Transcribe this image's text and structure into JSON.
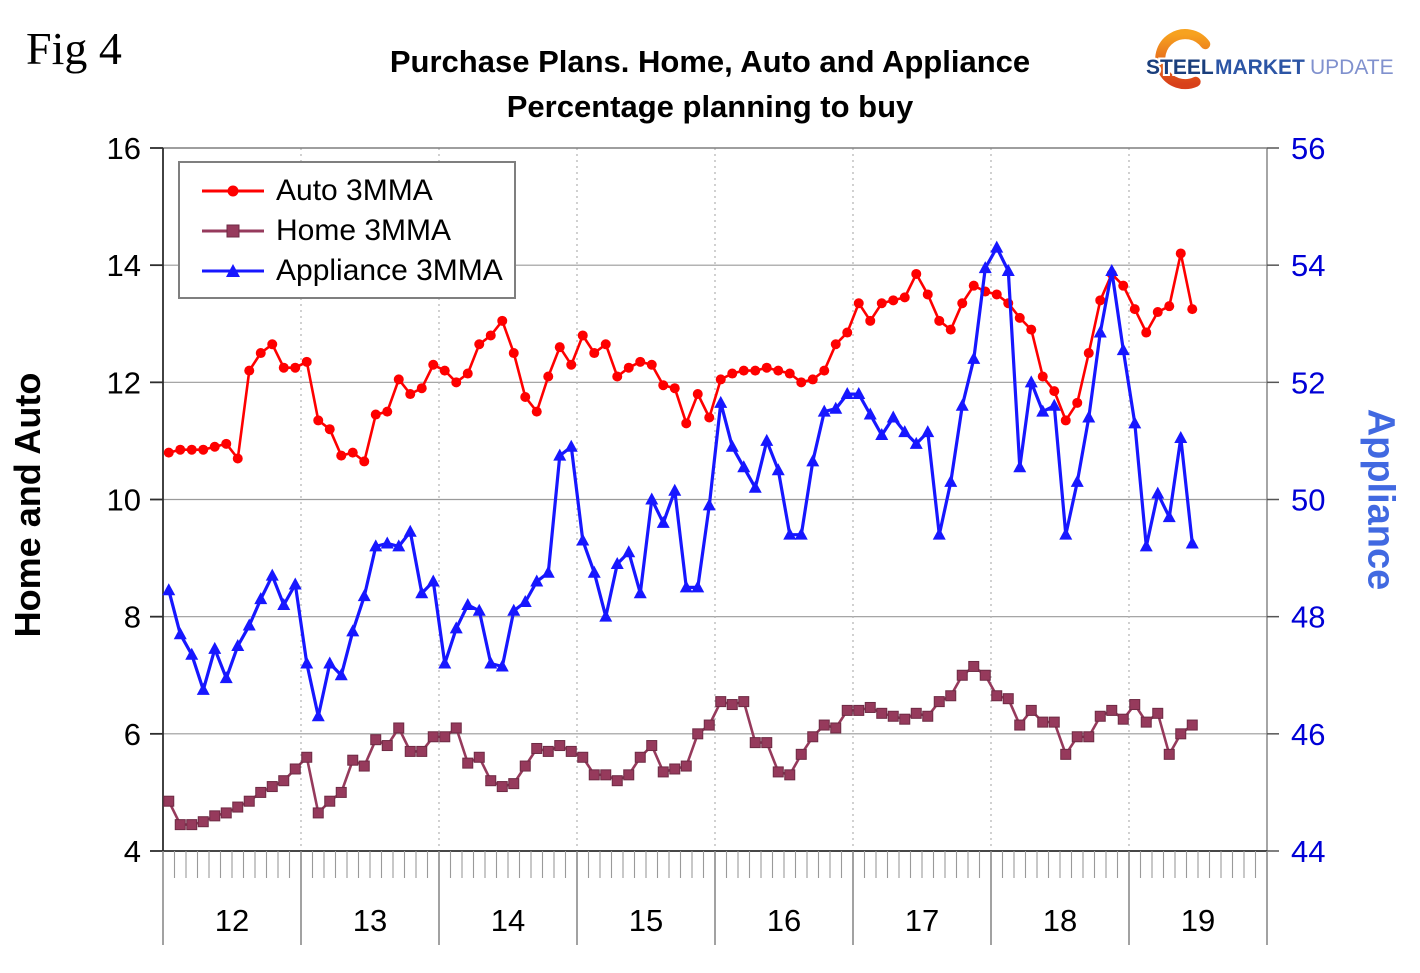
{
  "fig_label": "Fig 4",
  "title": {
    "line1": "Purchase Plans. Home, Auto and Appliance",
    "line2": "Percentage planning to buy"
  },
  "logo": {
    "steel": "STEEL",
    "market": "MARKET",
    "update": "UPDATE"
  },
  "left_axis": {
    "title": "Home and Auto",
    "min": 4,
    "max": 16,
    "ticks": [
      16,
      14,
      12,
      10,
      8,
      6,
      4
    ]
  },
  "right_axis": {
    "title": "Appliance",
    "min": 44,
    "max": 56,
    "ticks": [
      56,
      54,
      52,
      50,
      48,
      46,
      44
    ],
    "tick_color": "#0000d6",
    "title_color": "#4169e1"
  },
  "x_axis": {
    "year_labels": [
      "12",
      "13",
      "14",
      "15",
      "16",
      "17",
      "18",
      "19"
    ],
    "months_per_year": 12
  },
  "chart_data": {
    "type": "line",
    "x_range": "Jan 2012 - Jun 2019, monthly (90 points)",
    "title": "Purchase Plans. Home, Auto and Appliance — Percentage planning to buy",
    "grid": "horizontal solid every 2 units; vertical dotted at year boundaries",
    "legend_position": "top-left",
    "ylim_left": [
      4,
      16
    ],
    "ylim_right": [
      44,
      56
    ],
    "series": [
      {
        "name": "Auto 3MMA",
        "axis": "left",
        "color": "#fe0000",
        "marker": "circle",
        "values": [
          10.8,
          10.85,
          10.85,
          10.85,
          10.9,
          10.95,
          10.7,
          12.2,
          12.5,
          12.65,
          12.25,
          12.25,
          12.35,
          11.35,
          11.2,
          10.75,
          10.8,
          10.65,
          11.45,
          11.5,
          12.05,
          11.8,
          11.9,
          12.3,
          12.2,
          12.0,
          12.15,
          12.65,
          12.8,
          13.05,
          12.5,
          11.75,
          11.5,
          12.1,
          12.6,
          12.3,
          12.8,
          12.5,
          12.65,
          12.1,
          12.25,
          12.35,
          12.3,
          11.95,
          11.9,
          11.3,
          11.8,
          11.4,
          12.05,
          12.15,
          12.2,
          12.2,
          12.25,
          12.2,
          12.15,
          12.0,
          12.05,
          12.2,
          12.65,
          12.85,
          13.35,
          13.05,
          13.35,
          13.4,
          13.45,
          13.85,
          13.5,
          13.05,
          12.9,
          13.35,
          13.65,
          13.55,
          13.5,
          13.35,
          13.1,
          12.9,
          12.1,
          11.85,
          11.35,
          11.65,
          12.5,
          13.4,
          13.85,
          13.65,
          13.25,
          12.85,
          13.2,
          13.3,
          14.2,
          13.25
        ]
      },
      {
        "name": "Home 3MMA",
        "axis": "left",
        "color": "#963a5c",
        "marker": "square",
        "values": [
          4.85,
          4.45,
          4.45,
          4.5,
          4.6,
          4.65,
          4.75,
          4.85,
          5.0,
          5.1,
          5.2,
          5.4,
          5.6,
          4.65,
          4.85,
          5.0,
          5.55,
          5.45,
          5.9,
          5.8,
          6.1,
          5.7,
          5.7,
          5.95,
          5.95,
          6.1,
          5.5,
          5.6,
          5.2,
          5.1,
          5.15,
          5.45,
          5.75,
          5.7,
          5.8,
          5.7,
          5.6,
          5.3,
          5.3,
          5.2,
          5.3,
          5.6,
          5.8,
          5.35,
          5.4,
          5.45,
          6.0,
          6.15,
          6.55,
          6.5,
          6.55,
          5.85,
          5.85,
          5.35,
          5.3,
          5.65,
          5.95,
          6.15,
          6.1,
          6.4,
          6.4,
          6.45,
          6.35,
          6.3,
          6.25,
          6.35,
          6.3,
          6.55,
          6.65,
          7.0,
          7.15,
          7.0,
          6.65,
          6.6,
          6.15,
          6.4,
          6.2,
          6.2,
          5.65,
          5.95,
          5.95,
          6.3,
          6.4,
          6.25,
          6.5,
          6.2,
          6.35,
          5.65,
          6.0,
          6.15
        ]
      },
      {
        "name": "Appliance 3MMA",
        "axis": "right",
        "color": "#1717ff",
        "marker": "triangle",
        "values": [
          48.45,
          47.7,
          47.35,
          46.75,
          47.45,
          46.95,
          47.5,
          47.85,
          48.3,
          48.7,
          48.2,
          48.55,
          47.2,
          46.3,
          47.2,
          47.0,
          47.75,
          48.35,
          49.2,
          49.25,
          49.2,
          49.45,
          48.4,
          48.6,
          47.2,
          47.8,
          48.2,
          48.1,
          47.2,
          47.15,
          48.1,
          48.25,
          48.6,
          48.75,
          50.75,
          50.9,
          49.3,
          48.75,
          48.0,
          48.9,
          49.1,
          48.4,
          50.0,
          49.6,
          50.15,
          48.5,
          48.5,
          49.9,
          51.65,
          50.9,
          50.55,
          50.2,
          51.0,
          50.5,
          49.4,
          49.4,
          50.65,
          51.5,
          51.55,
          51.8,
          51.8,
          51.45,
          51.1,
          51.4,
          51.15,
          50.95,
          51.15,
          49.4,
          50.3,
          51.6,
          52.4,
          53.95,
          54.3,
          53.9,
          50.55,
          52.0,
          51.5,
          51.6,
          49.4,
          50.3,
          51.4,
          52.85,
          53.9,
          52.55,
          51.3,
          49.2,
          50.1,
          49.7,
          51.05,
          49.25
        ]
      }
    ]
  }
}
